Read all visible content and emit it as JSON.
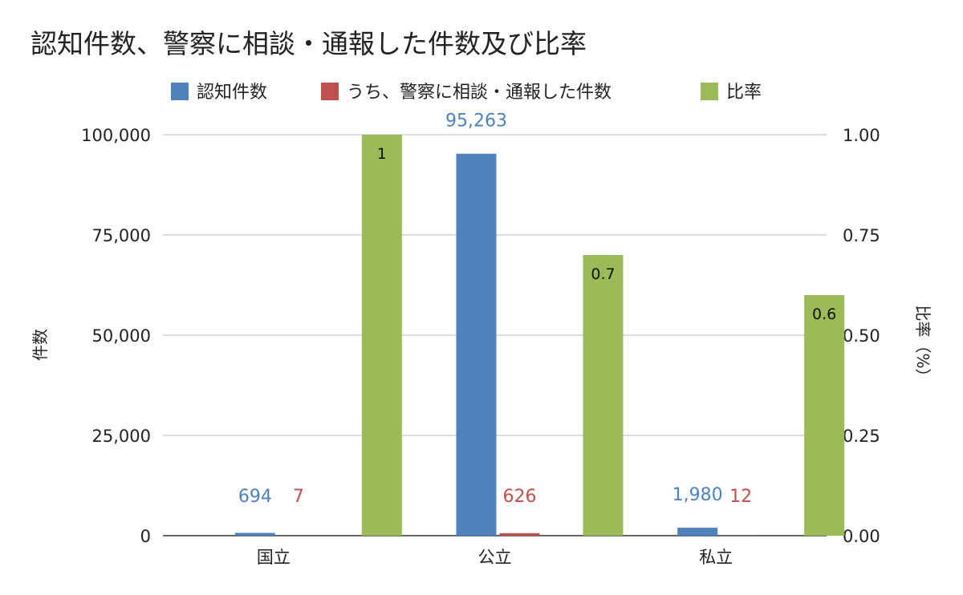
{
  "chart_data": {
    "type": "bar",
    "title": "認知件数、警察に相談・通報した件数及び比率",
    "categories": [
      "国立",
      "公立",
      "私立"
    ],
    "series": [
      {
        "name": "認知件数",
        "axis": "left",
        "color": "#4f81bd",
        "values": [
          694,
          95263,
          1980
        ],
        "labels": [
          "694",
          "95,263",
          "1,980"
        ],
        "label_color": "#4f81bd",
        "label_pos": "above"
      },
      {
        "name": "うち、警察に相談・通報した件数",
        "axis": "left",
        "color": "#c0504d",
        "values": [
          7,
          626,
          12
        ],
        "labels": [
          "7",
          "626",
          "12"
        ],
        "label_color": "#c0504d",
        "label_pos": "above"
      },
      {
        "name": "比率",
        "axis": "right",
        "color": "#9bbb59",
        "values": [
          1,
          0.7,
          0.6
        ],
        "labels": [
          "1",
          "0.7",
          "0.6"
        ],
        "label_color": "#111111",
        "label_pos": "inside"
      }
    ],
    "ylabel": "件数",
    "y2label": "比率（%）",
    "ylim": [
      0,
      100000
    ],
    "y2lim": [
      0,
      1
    ],
    "yticks": [
      "0",
      "25,000",
      "50,000",
      "75,000",
      "100,000"
    ],
    "y2ticks": [
      "0.00",
      "0.25",
      "0.50",
      "0.75",
      "1.00"
    ],
    "grid": true,
    "legend": "top"
  }
}
